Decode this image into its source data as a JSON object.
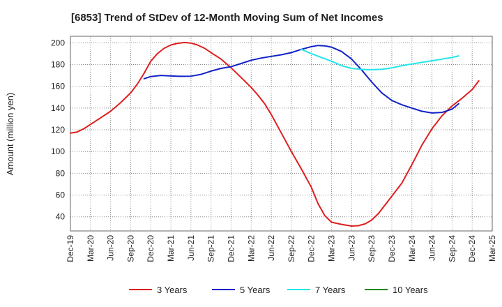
{
  "chart_data": {
    "type": "line",
    "title": "[6853]  Trend of StDev of 12-Month Moving Sum of Net Incomes",
    "xlabel": "",
    "ylabel": "Amount (million yen)",
    "ylim": [
      27,
      206
    ],
    "y_ticks": [
      40,
      60,
      80,
      100,
      120,
      140,
      160,
      180,
      200
    ],
    "x_labels": [
      "Dec-19",
      "Mar-20",
      "Jun-20",
      "Sep-20",
      "Dec-20",
      "Mar-21",
      "Jun-21",
      "Sep-21",
      "Dec-21",
      "Mar-22",
      "Jun-22",
      "Sep-22",
      "Dec-22",
      "Mar-23",
      "Jun-23",
      "Sep-23",
      "Dec-23",
      "Mar-24",
      "Jun-24",
      "Sep-24",
      "Dec-24",
      "Mar-25"
    ],
    "grid": true,
    "legend_position": "bottom",
    "series": [
      {
        "name": "3 Years",
        "color": "#e01e1e",
        "points": [
          [
            0,
            117
          ],
          [
            0.33,
            118
          ],
          [
            0.67,
            121
          ],
          [
            1,
            125
          ],
          [
            1.5,
            131
          ],
          [
            2,
            137
          ],
          [
            2.5,
            145
          ],
          [
            3,
            154
          ],
          [
            3.33,
            162
          ],
          [
            3.67,
            172
          ],
          [
            4,
            183
          ],
          [
            4.33,
            190
          ],
          [
            4.67,
            195
          ],
          [
            5,
            198
          ],
          [
            5.33,
            199.5
          ],
          [
            5.67,
            200.3
          ],
          [
            6,
            199.8
          ],
          [
            6.33,
            198
          ],
          [
            6.67,
            195
          ],
          [
            7,
            191
          ],
          [
            7.5,
            185
          ],
          [
            8,
            177
          ],
          [
            8.5,
            168
          ],
          [
            9,
            159
          ],
          [
            9.33,
            152
          ],
          [
            9.67,
            144
          ],
          [
            10,
            134
          ],
          [
            10.5,
            117
          ],
          [
            11,
            100
          ],
          [
            11.5,
            84
          ],
          [
            12,
            67
          ],
          [
            12.33,
            52
          ],
          [
            12.67,
            41
          ],
          [
            13,
            35
          ],
          [
            13.5,
            33
          ],
          [
            14,
            31.5
          ],
          [
            14.33,
            31.8
          ],
          [
            14.67,
            33.5
          ],
          [
            15,
            37
          ],
          [
            15.33,
            43
          ],
          [
            15.67,
            51
          ],
          [
            16,
            59
          ],
          [
            16.5,
            71
          ],
          [
            17,
            88
          ],
          [
            17.5,
            106
          ],
          [
            18,
            121
          ],
          [
            18.5,
            133
          ],
          [
            19,
            142
          ],
          [
            19.5,
            149
          ],
          [
            20,
            157
          ],
          [
            20.33,
            165
          ]
        ]
      },
      {
        "name": "5 Years",
        "color": "#1222c8",
        "points": [
          [
            3.67,
            167
          ],
          [
            4,
            169
          ],
          [
            4.5,
            170
          ],
          [
            5,
            169.5
          ],
          [
            5.5,
            169.2
          ],
          [
            6,
            169.3
          ],
          [
            6.5,
            171
          ],
          [
            7,
            174
          ],
          [
            7.5,
            176.5
          ],
          [
            8,
            178
          ],
          [
            8.5,
            181
          ],
          [
            9,
            184
          ],
          [
            9.5,
            186
          ],
          [
            10,
            187.5
          ],
          [
            10.5,
            189
          ],
          [
            11,
            191
          ],
          [
            11.5,
            194
          ],
          [
            12,
            196.5
          ],
          [
            12.33,
            197.5
          ],
          [
            12.67,
            197.2
          ],
          [
            13,
            196
          ],
          [
            13.5,
            192
          ],
          [
            14,
            185
          ],
          [
            14.5,
            175
          ],
          [
            15,
            164
          ],
          [
            15.5,
            154
          ],
          [
            16,
            147
          ],
          [
            16.5,
            143
          ],
          [
            17,
            140
          ],
          [
            17.5,
            137
          ],
          [
            18,
            135.5
          ],
          [
            18.5,
            136
          ],
          [
            19,
            139
          ],
          [
            19.33,
            144
          ]
        ]
      },
      {
        "name": "7 Years",
        "color": "#22e6ea",
        "points": [
          [
            11.5,
            194
          ],
          [
            12,
            190
          ],
          [
            12.5,
            186.5
          ],
          [
            13,
            183
          ],
          [
            13.5,
            179
          ],
          [
            14,
            176.5
          ],
          [
            14.5,
            175.5
          ],
          [
            15,
            175.3
          ],
          [
            15.5,
            175.6
          ],
          [
            16,
            177
          ],
          [
            16.5,
            179
          ],
          [
            17,
            180.5
          ],
          [
            17.5,
            182
          ],
          [
            18,
            183.5
          ],
          [
            18.5,
            185
          ],
          [
            19,
            186.5
          ],
          [
            19.33,
            188
          ]
        ]
      },
      {
        "name": "10 Years",
        "color": "#1e8a1e",
        "points": []
      }
    ]
  }
}
